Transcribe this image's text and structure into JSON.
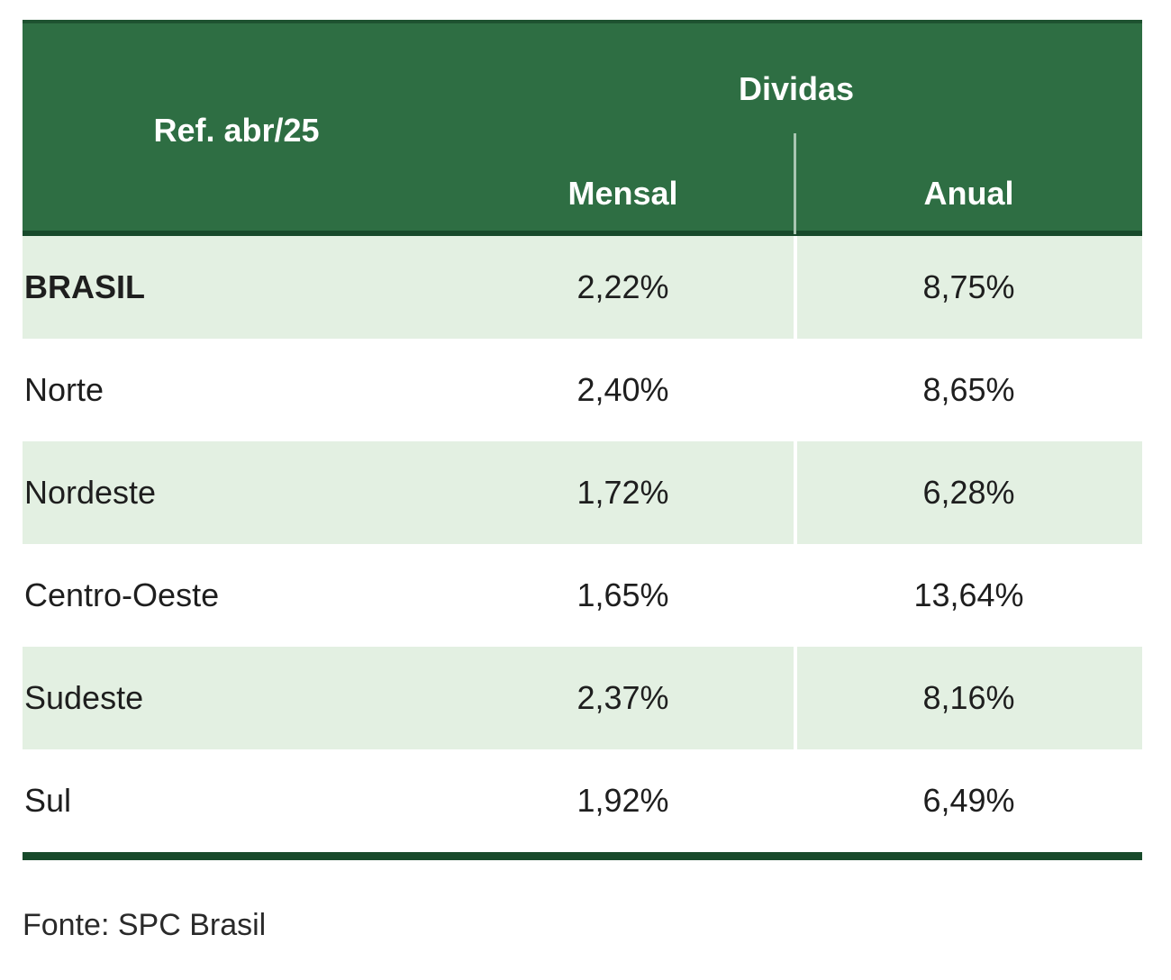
{
  "chart_data": {
    "type": "table",
    "title": "Dividas",
    "row_header": "Ref. abr/25",
    "group_header": "Dividas",
    "columns": [
      "Mensal",
      "Anual"
    ],
    "rows": [
      {
        "label": "BRASIL",
        "mensal": "2,22%",
        "anual": "8,75%",
        "bold": true
      },
      {
        "label": "Norte",
        "mensal": "2,40%",
        "anual": "8,65%",
        "bold": false
      },
      {
        "label": "Nordeste",
        "mensal": "1,72%",
        "anual": "6,28%",
        "bold": false
      },
      {
        "label": "Centro-Oeste",
        "mensal": "1,65%",
        "anual": "13,64%",
        "bold": false
      },
      {
        "label": "Sudeste",
        "mensal": "2,37%",
        "anual": "8,16%",
        "bold": false
      },
      {
        "label": "Sul",
        "mensal": "1,92%",
        "anual": "6,49%",
        "bold": false
      }
    ],
    "values_mensal": [
      2.22,
      2.4,
      1.72,
      1.65,
      2.37,
      1.92
    ],
    "values_anual": [
      8.75,
      8.65,
      6.28,
      13.64,
      8.16,
      6.49
    ]
  },
  "source": "Fonte: SPC Brasil",
  "colors": {
    "header_bg": "#2e6e43",
    "rule": "#184a2b",
    "shaded_row": "#e3f0e2"
  }
}
